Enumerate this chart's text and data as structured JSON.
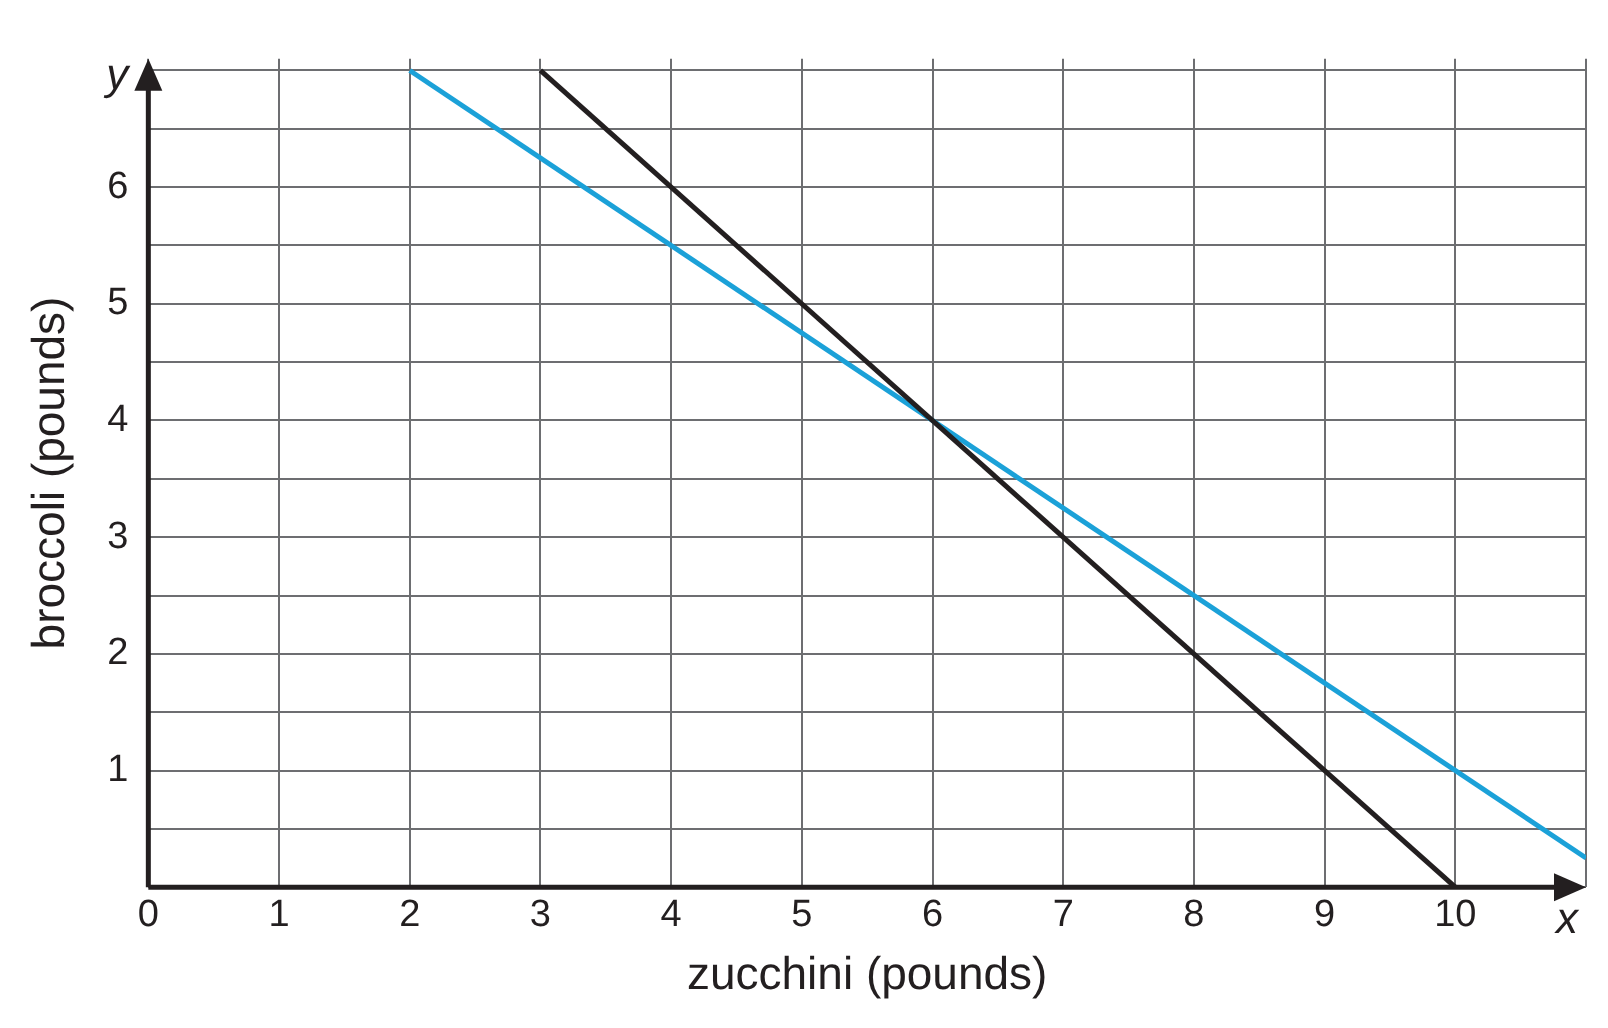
{
  "chart_data": {
    "type": "line",
    "xlabel": "zucchini (pounds)",
    "ylabel": "broccoli (pounds)",
    "annotations": [
      "x",
      "y"
    ],
    "xlim": [
      0,
      11
    ],
    "ylim": [
      0,
      7.1
    ],
    "xticks": [
      {
        "value": 0,
        "label": "0"
      },
      1,
      2,
      3,
      4,
      5,
      6,
      7,
      8,
      9,
      10,
      {
        "value": 11,
        "label": null
      }
    ],
    "yticks": [
      {
        "value": 0,
        "label": null
      },
      {
        "value": 0.5,
        "label": null
      },
      1,
      {
        "value": 1.5,
        "label": null
      },
      2,
      {
        "value": 2.5,
        "label": null
      },
      3,
      {
        "value": 3.5,
        "label": null
      },
      4,
      {
        "value": 4.5,
        "label": null
      },
      5,
      {
        "value": 5.5,
        "label": null
      },
      6,
      {
        "value": 6.5,
        "label": null
      },
      {
        "value": 7,
        "label": null
      }
    ],
    "series": [
      {
        "x": [
          3,
          10
        ],
        "values": [
          7,
          0
        ],
        "color": "#231f20"
      },
      {
        "x": [
          2,
          11
        ],
        "values": [
          7,
          0.25
        ],
        "color": "#1ba1d8"
      }
    ],
    "grid": true,
    "legend": false,
    "marker": "none",
    "line_style": "solid"
  }
}
